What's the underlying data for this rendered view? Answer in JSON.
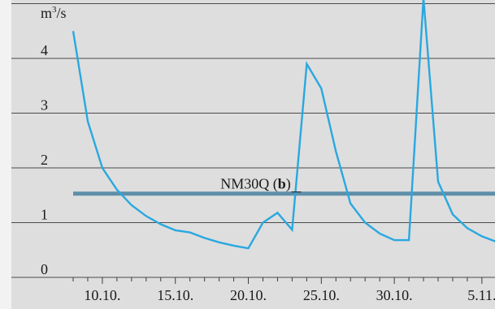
{
  "chart_data": {
    "type": "line",
    "unit_label_base": "m",
    "unit_label_sup": "3",
    "unit_label_tail": "/s",
    "y_ticks": [
      "0",
      "1",
      "2",
      "3",
      "4"
    ],
    "ylim": [
      0,
      5
    ],
    "x_tick_labels": [
      {
        "label": "10.10.",
        "day": 10
      },
      {
        "label": "15.10.",
        "day": 15
      },
      {
        "label": "20.10.",
        "day": 20
      },
      {
        "label": "25.10.",
        "day": 25
      },
      {
        "label": "30.10.",
        "day": 30
      },
      {
        "label": "5.11.",
        "day": 36
      }
    ],
    "x_minor_ticks_every": 1,
    "xlim": [
      7,
      38
    ],
    "grid": "horizontal",
    "series": [
      {
        "color": "#29a8e0",
        "points": [
          [
            8,
            4.5
          ],
          [
            9,
            2.85
          ],
          [
            10,
            2.0
          ],
          [
            11,
            1.6
          ],
          [
            12,
            1.32
          ],
          [
            13,
            1.12
          ],
          [
            14,
            0.97
          ],
          [
            15,
            0.86
          ],
          [
            16,
            0.82
          ],
          [
            17,
            0.72
          ],
          [
            18,
            0.64
          ],
          [
            19,
            0.58
          ],
          [
            20,
            0.53
          ],
          [
            21,
            1.0
          ],
          [
            22,
            1.18
          ],
          [
            23,
            0.87
          ],
          [
            24,
            3.9
          ],
          [
            25,
            3.45
          ],
          [
            26,
            2.3
          ],
          [
            27,
            1.35
          ],
          [
            28,
            1.0
          ],
          [
            29,
            0.8
          ],
          [
            30,
            0.68
          ],
          [
            31,
            0.68
          ],
          [
            32,
            5.1
          ],
          [
            33,
            1.75
          ],
          [
            34,
            1.15
          ],
          [
            35,
            0.9
          ],
          [
            36,
            0.75
          ],
          [
            37,
            0.65
          ]
        ]
      }
    ],
    "reference_line": {
      "value": 1.53,
      "from_day": 8,
      "to_day": 37.9,
      "color": "#5f8fa8",
      "label_text": "NM30Q (",
      "label_bold": "b",
      "label_close": ")",
      "label_anchor_day": 20.5,
      "label_anchor_value": 1.62
    }
  }
}
